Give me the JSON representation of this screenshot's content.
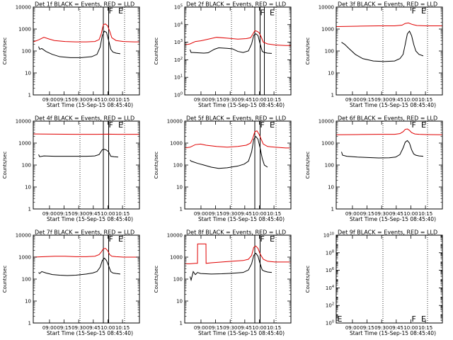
{
  "figure": {
    "xtick_labels": [
      "09:00",
      "09:15",
      "09:30",
      "09:45",
      "10:00",
      "10:15"
    ],
    "xlabel": "Start Time (15-Sep-15 08:45:40)",
    "ylabel": "Counts/sec"
  },
  "chart_data": [
    {
      "type": "line",
      "title": "Det 1f BLACK = Events, RED = LLD",
      "ylim": [
        1,
        10000
      ],
      "log_y": true,
      "yticks": [
        {
          "v": 1,
          "t": "1"
        },
        {
          "v": 10,
          "t": "10"
        },
        {
          "v": 100,
          "t": "100"
        },
        {
          "v": 1000,
          "t": "1000"
        },
        {
          "v": 10000,
          "t": "10000"
        }
      ],
      "xlim": [
        0,
        100
      ],
      "vlines": [
        44,
        86
      ],
      "flare_bars": [
        66,
        71
      ],
      "markers": [
        {
          "x": 71,
          "y": 7000,
          "t": "F"
        },
        {
          "x": 80,
          "y": 7000,
          "t": "E"
        }
      ],
      "series": [
        {
          "color": "#e00000",
          "x": [
            0,
            5,
            10,
            15,
            20,
            30,
            40,
            50,
            58,
            62,
            64,
            66,
            68,
            70,
            72,
            74,
            78,
            85,
            95,
            100
          ],
          "values": [
            260,
            320,
            420,
            350,
            300,
            270,
            260,
            260,
            270,
            330,
            600,
            1600,
            1700,
            1400,
            800,
            400,
            300,
            270,
            260,
            260
          ]
        },
        {
          "color": "#000000",
          "x": [
            5,
            6,
            8,
            12,
            18,
            25,
            35,
            45,
            55,
            60,
            63,
            65,
            67,
            69,
            71,
            73,
            75,
            78,
            82
          ],
          "values": [
            160,
            120,
            130,
            95,
            70,
            55,
            50,
            50,
            55,
            70,
            150,
            500,
            800,
            700,
            300,
            120,
            90,
            80,
            75
          ]
        }
      ]
    },
    {
      "type": "line",
      "title": "Det 2f BLACK = Events, RED = LLD",
      "ylim": [
        1,
        100000
      ],
      "log_y": true,
      "yticks": [
        {
          "v": 1,
          "t": "10^0"
        },
        {
          "v": 10,
          "t": "10^1"
        },
        {
          "v": 100,
          "t": "10^2"
        },
        {
          "v": 1000,
          "t": "10^3"
        },
        {
          "v": 10000,
          "t": "10^4"
        },
        {
          "v": 100000,
          "t": "10^5"
        }
      ],
      "xlim": [
        0,
        100
      ],
      "vlines": [
        44,
        86
      ],
      "flare_bars": [
        66,
        71,
        75
      ],
      "markers": [
        {
          "x": 71,
          "y": 50000,
          "t": "F"
        },
        {
          "x": 80,
          "y": 50000,
          "t": "E"
        }
      ],
      "series": [
        {
          "color": "#e00000",
          "x": [
            0,
            5,
            10,
            15,
            20,
            30,
            40,
            50,
            58,
            62,
            64,
            66,
            68,
            70,
            72,
            74,
            78,
            85,
            95,
            100
          ],
          "values": [
            700,
            800,
            1100,
            1200,
            1400,
            1900,
            1700,
            1500,
            1600,
            1800,
            2800,
            4500,
            4200,
            3500,
            2000,
            1000,
            800,
            700,
            650,
            650
          ]
        },
        {
          "color": "#000000",
          "x": [
            5,
            6,
            8,
            12,
            18,
            22,
            28,
            32,
            40,
            45,
            50,
            55,
            60,
            63,
            65,
            67,
            69,
            71,
            73,
            75,
            78,
            82
          ],
          "values": [
            380,
            260,
            260,
            250,
            240,
            250,
            400,
            480,
            450,
            420,
            300,
            260,
            320,
            800,
            2500,
            3000,
            2400,
            800,
            300,
            260,
            240,
            230
          ]
        }
      ]
    },
    {
      "type": "line",
      "title": "Det 3f BLACK = Events, RED = LLD",
      "ylim": [
        1,
        10000
      ],
      "log_y": true,
      "yticks": [
        {
          "v": 1,
          "t": "1"
        },
        {
          "v": 10,
          "t": "10"
        },
        {
          "v": 100,
          "t": "100"
        },
        {
          "v": 1000,
          "t": "1000"
        },
        {
          "v": 10000,
          "t": "10000"
        }
      ],
      "xlim": [
        0,
        100
      ],
      "vlines": [
        44,
        86
      ],
      "flare_bars": [],
      "markers": [
        {
          "x": 71,
          "y": 7000,
          "t": "F"
        },
        {
          "x": 80,
          "y": 7000,
          "t": "E"
        }
      ],
      "series": [
        {
          "color": "#e00000",
          "x": [
            0,
            20,
            40,
            55,
            62,
            65,
            68,
            72,
            76,
            85,
            100
          ],
          "values": [
            1300,
            1350,
            1400,
            1400,
            1500,
            1800,
            1900,
            1600,
            1450,
            1400,
            1400
          ]
        },
        {
          "color": "#000000",
          "x": [
            5,
            8,
            12,
            18,
            25,
            35,
            45,
            55,
            60,
            63,
            65,
            67,
            69,
            71,
            73,
            75,
            78,
            82
          ],
          "values": [
            250,
            200,
            130,
            70,
            45,
            35,
            33,
            35,
            45,
            70,
            200,
            600,
            800,
            500,
            200,
            100,
            70,
            60
          ]
        }
      ]
    },
    {
      "type": "line",
      "title": "Det 4f BLACK = Events, RED = LLD",
      "ylim": [
        1,
        10000
      ],
      "log_y": true,
      "yticks": [
        {
          "v": 1,
          "t": "1"
        },
        {
          "v": 10,
          "t": "10"
        },
        {
          "v": 100,
          "t": "100"
        },
        {
          "v": 1000,
          "t": "1000"
        },
        {
          "v": 10000,
          "t": "10000"
        }
      ],
      "xlim": [
        0,
        100
      ],
      "vlines": [
        44,
        86
      ],
      "flare_bars": [
        66,
        71
      ],
      "markers": [
        {
          "x": 71,
          "y": 7000,
          "t": "F"
        },
        {
          "x": 80,
          "y": 7000,
          "t": "E"
        }
      ],
      "series": [
        {
          "color": "#e00000",
          "x": [
            0,
            20,
            40,
            60,
            70,
            80,
            100
          ],
          "values": [
            2600,
            2550,
            2500,
            2500,
            2550,
            2500,
            2500
          ]
        },
        {
          "color": "#000000",
          "x": [
            5,
            6,
            10,
            20,
            30,
            40,
            50,
            58,
            62,
            65,
            67,
            69,
            71,
            73,
            76,
            80
          ],
          "values": [
            300,
            240,
            260,
            250,
            250,
            250,
            250,
            260,
            300,
            500,
            520,
            480,
            400,
            250,
            240,
            230
          ]
        }
      ]
    },
    {
      "type": "line",
      "title": "Det 5f BLACK = Events, RED = LLD",
      "ylim": [
        1,
        10000
      ],
      "log_y": true,
      "yticks": [
        {
          "v": 1,
          "t": "1"
        },
        {
          "v": 10,
          "t": "10"
        },
        {
          "v": 100,
          "t": "100"
        },
        {
          "v": 1000,
          "t": "1000"
        },
        {
          "v": 10000,
          "t": "10000"
        }
      ],
      "xlim": [
        0,
        100
      ],
      "vlines": [
        44,
        86
      ],
      "flare_bars": [
        66,
        71
      ],
      "markers": [
        {
          "x": 71,
          "y": 7000,
          "t": "F"
        },
        {
          "x": 80,
          "y": 7000,
          "t": "E"
        }
      ],
      "series": [
        {
          "color": "#e00000",
          "x": [
            0,
            5,
            10,
            15,
            20,
            30,
            40,
            50,
            58,
            62,
            64,
            66,
            68,
            70,
            72,
            74,
            78,
            85,
            95,
            100
          ],
          "values": [
            600,
            650,
            850,
            900,
            800,
            700,
            650,
            700,
            800,
            1000,
            1600,
            3300,
            3600,
            2500,
            1500,
            900,
            700,
            650,
            600,
            600
          ]
        },
        {
          "color": "#000000",
          "x": [
            5,
            6,
            8,
            12,
            18,
            25,
            32,
            40,
            50,
            56,
            60,
            63,
            65,
            67,
            69,
            71,
            73,
            75,
            78
          ],
          "values": [
            170,
            150,
            140,
            120,
            100,
            80,
            70,
            75,
            90,
            110,
            150,
            400,
            1500,
            2000,
            1500,
            600,
            200,
            100,
            80
          ]
        }
      ]
    },
    {
      "type": "line",
      "title": "Det 6f BLACK = Events, RED = LLD",
      "ylim": [
        1,
        10000
      ],
      "log_y": true,
      "yticks": [
        {
          "v": 1,
          "t": "1"
        },
        {
          "v": 10,
          "t": "10"
        },
        {
          "v": 100,
          "t": "100"
        },
        {
          "v": 1000,
          "t": "1000"
        },
        {
          "v": 10000,
          "t": "10000"
        }
      ],
      "xlim": [
        0,
        100
      ],
      "vlines": [
        44,
        86
      ],
      "flare_bars": [],
      "markers": [
        {
          "x": 71,
          "y": 7000,
          "t": "F"
        },
        {
          "x": 80,
          "y": 7000,
          "t": "E"
        }
      ],
      "series": [
        {
          "color": "#e00000",
          "x": [
            0,
            20,
            40,
            55,
            60,
            63,
            65,
            67,
            69,
            71,
            74,
            78,
            85,
            100
          ],
          "values": [
            2400,
            2450,
            2500,
            2500,
            2700,
            3300,
            4200,
            4400,
            3800,
            3000,
            2600,
            2500,
            2450,
            2400
          ]
        },
        {
          "color": "#000000",
          "x": [
            5,
            6,
            10,
            20,
            30,
            40,
            50,
            56,
            60,
            63,
            65,
            67,
            69,
            71,
            73,
            75,
            78,
            82
          ],
          "values": [
            400,
            280,
            250,
            230,
            220,
            210,
            215,
            230,
            300,
            600,
            1100,
            1300,
            1000,
            500,
            320,
            280,
            260,
            250
          ]
        }
      ]
    },
    {
      "type": "line",
      "title": "Det 7f BLACK = Events, RED = LLD",
      "ylim": [
        1,
        10000
      ],
      "log_y": true,
      "yticks": [
        {
          "v": 1,
          "t": "1"
        },
        {
          "v": 10,
          "t": "10"
        },
        {
          "v": 100,
          "t": "100"
        },
        {
          "v": 1000,
          "t": "1000"
        },
        {
          "v": 10000,
          "t": "10000"
        }
      ],
      "xlim": [
        0,
        100
      ],
      "vlines": [
        44,
        86
      ],
      "flare_bars": [
        66,
        71
      ],
      "markers": [
        {
          "x": 71,
          "y": 7000,
          "t": "F"
        },
        {
          "x": 80,
          "y": 7000,
          "t": "E"
        }
      ],
      "series": [
        {
          "color": "#e00000",
          "x": [
            0,
            10,
            20,
            30,
            40,
            50,
            58,
            62,
            64,
            66,
            68,
            70,
            72,
            74,
            78,
            85,
            100
          ],
          "values": [
            1000,
            1050,
            1100,
            1100,
            1050,
            1050,
            1100,
            1300,
            1700,
            2400,
            2500,
            2000,
            1300,
            1100,
            1050,
            1000,
            1000
          ]
        },
        {
          "color": "#000000",
          "x": [
            5,
            6,
            8,
            12,
            18,
            25,
            32,
            40,
            50,
            56,
            60,
            63,
            65,
            67,
            69,
            71,
            73,
            75,
            78,
            82
          ],
          "values": [
            200,
            180,
            220,
            190,
            160,
            150,
            145,
            150,
            170,
            190,
            220,
            350,
            700,
            900,
            700,
            400,
            220,
            190,
            180,
            170
          ]
        }
      ]
    },
    {
      "type": "line",
      "title": "Det 8f BLACK = Events, RED = LLD",
      "ylim": [
        1,
        10000
      ],
      "log_y": true,
      "yticks": [
        {
          "v": 1,
          "t": "1"
        },
        {
          "v": 10,
          "t": "10"
        },
        {
          "v": 100,
          "t": "100"
        },
        {
          "v": 1000,
          "t": "1000"
        },
        {
          "v": 10000,
          "t": "10000"
        }
      ],
      "xlim": [
        0,
        100
      ],
      "vlines": [
        44,
        86
      ],
      "flare_bars": [
        66,
        71
      ],
      "markers": [
        {
          "x": 71,
          "y": 7000,
          "t": "F"
        },
        {
          "x": 80,
          "y": 7000,
          "t": "E"
        }
      ],
      "series": [
        {
          "color": "#e00000",
          "x": [
            0,
            5,
            10,
            12,
            12.1,
            20,
            20.1,
            25,
            35,
            45,
            55,
            60,
            63,
            65,
            67,
            69,
            71,
            74,
            78,
            85,
            100
          ],
          "values": [
            500,
            500,
            520,
            520,
            4000,
            4000,
            520,
            550,
            600,
            650,
            700,
            800,
            1200,
            2800,
            3200,
            2500,
            1400,
            800,
            650,
            600,
            600
          ]
        },
        {
          "color": "#000000",
          "x": [
            5,
            6,
            8,
            10,
            12,
            15,
            25,
            35,
            45,
            55,
            60,
            63,
            65,
            67,
            69,
            71,
            73,
            75,
            78,
            82
          ],
          "values": [
            130,
            90,
            220,
            160,
            200,
            180,
            170,
            175,
            185,
            200,
            260,
            500,
            1200,
            1500,
            1100,
            500,
            260,
            230,
            210,
            200
          ]
        }
      ]
    },
    {
      "type": "line",
      "title": "Det 9f BLACK = Events, RED = LLD",
      "ylim": [
        1,
        10000000000.0
      ],
      "log_y": true,
      "yticks": [
        {
          "v": 1,
          "t": "10^0"
        },
        {
          "v": 100,
          "t": "10^2"
        },
        {
          "v": 10000,
          "t": "10^4"
        },
        {
          "v": 1000000,
          "t": "10^6"
        },
        {
          "v": 100000000,
          "t": "10^8"
        },
        {
          "v": 10000000000,
          "t": "10^10"
        }
      ],
      "xlim": [
        0,
        100
      ],
      "vlines": [
        44,
        86
      ],
      "flare_bars": [],
      "markers": [
        {
          "x": 1,
          "y": 3,
          "t": "E"
        },
        {
          "x": 71,
          "y": 3,
          "t": "F"
        },
        {
          "x": 80,
          "y": 3,
          "t": "E"
        }
      ],
      "series": []
    }
  ]
}
